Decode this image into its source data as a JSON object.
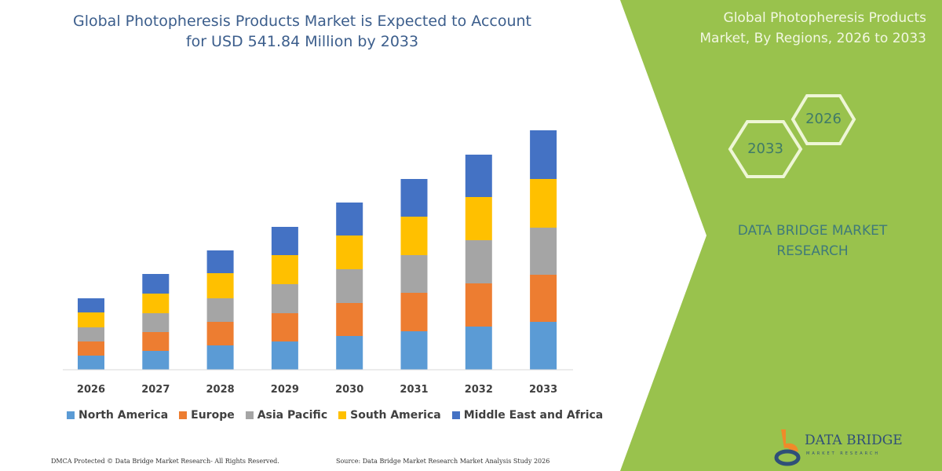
{
  "header": {
    "title_line1": "Global Photopheresis Products Market is Expected to Account",
    "title_line2": "for USD 541.84 Million by 2033"
  },
  "side_panel": {
    "title_line1": "Global Photopheresis Products",
    "title_line2": "Market, By Regions, 2026 to 2033",
    "hex_start": "2026",
    "hex_end": "2033",
    "brand_line1": "DATA BRIDGE MARKET",
    "brand_line2": "RESEARCH"
  },
  "footer": {
    "copyright": "DMCA Protected © Data Bridge Market Research- All Rights Reserved.",
    "source": "Source: Data Bridge Market Research Market Analysis Study 2026"
  },
  "logo": {
    "name": "DATA BRIDGE",
    "sub": "MARKET RESEARCH"
  },
  "colors": {
    "panel": "#99c24d",
    "title": "#3c5e8c"
  },
  "chart_data": {
    "type": "bar",
    "stacked": true,
    "title": "Global Photopheresis Products Market is Expected to Account for USD 541.84 Million by 2033",
    "categories": [
      "2026",
      "2027",
      "2028",
      "2029",
      "2030",
      "2031",
      "2032",
      "2033"
    ],
    "y_axis_shown": false,
    "grid": false,
    "legend_placement": "bottom",
    "series": [
      {
        "name": "North America",
        "color": "#5b9bd5",
        "values": [
          18,
          24,
          31,
          36,
          43,
          49,
          55,
          61
        ]
      },
      {
        "name": "Europe",
        "color": "#ed7d31",
        "values": [
          18,
          24,
          30,
          36,
          42,
          49,
          55,
          60
        ]
      },
      {
        "name": "Asia Pacific",
        "color": "#a5a5a5",
        "values": [
          18,
          24,
          30,
          37,
          43,
          48,
          55,
          60
        ]
      },
      {
        "name": "South America",
        "color": "#ffc000",
        "values": [
          19,
          25,
          32,
          37,
          43,
          49,
          55,
          62
        ]
      },
      {
        "name": "Middle East and Africa",
        "color": "#4472c4",
        "values": [
          18,
          25,
          29,
          36,
          42,
          48,
          54,
          62
        ]
      }
    ]
  }
}
